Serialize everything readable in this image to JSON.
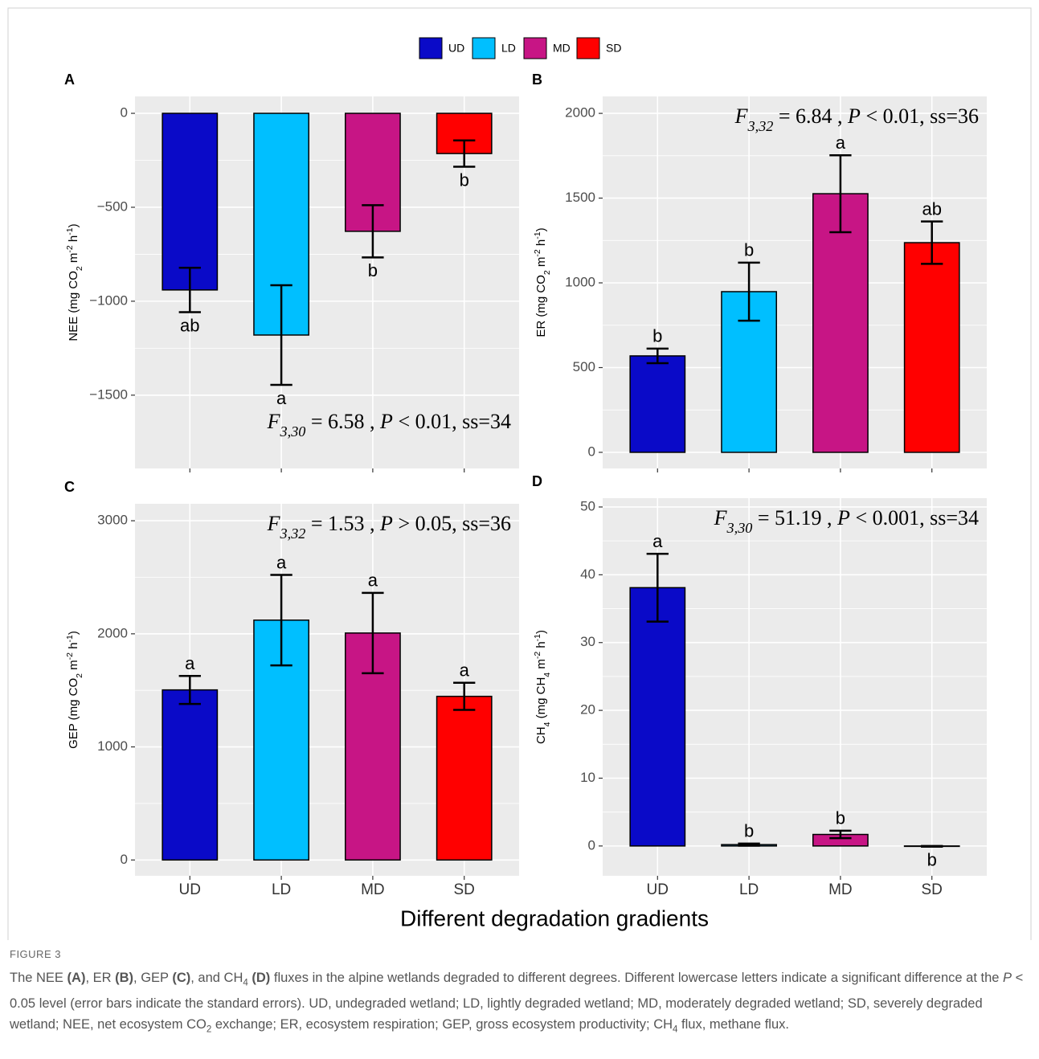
{
  "legend": {
    "labels": [
      "UD",
      "LD",
      "MD",
      "SD"
    ],
    "colors": [
      "#0a0ac8",
      "#00bfff",
      "#c71585",
      "#ff0000"
    ]
  },
  "xlabel": "Different degradation gradients",
  "chart_data": [
    {
      "type": "bar",
      "panel": "A",
      "ylabel": [
        "NEE (mg CO",
        {
          "text": "2",
          "style": "sub"
        },
        " m",
        {
          "text": "-2",
          "style": "sup"
        },
        " h",
        {
          "text": "-1",
          "style": "sup"
        },
        ")"
      ],
      "stat": [
        {
          "text": "F",
          "style": "i"
        },
        {
          "text": "3,30",
          "style": "isub"
        },
        " = 6.58 , ",
        {
          "text": "P",
          "style": "i"
        },
        " < 0.01, ss=34"
      ],
      "stat_corner": "bottom-right",
      "categories": [
        null,
        null,
        null,
        null
      ],
      "values": [
        -940,
        -1180,
        -628,
        -214
      ],
      "errors": [
        118,
        265,
        139,
        70
      ],
      "letters": [
        "ab",
        "a",
        "b",
        "b"
      ],
      "colors": [
        "#0a0ac8",
        "#00bfff",
        "#c71585",
        "#ff0000"
      ],
      "ylim": [
        -1890,
        90
      ],
      "yticks": [
        {
          "value": -1500,
          "label": "−1500"
        },
        {
          "value": -1000,
          "label": "−1000"
        },
        {
          "value": -500,
          "label": "−500"
        },
        0
      ],
      "grid": true
    },
    {
      "type": "bar",
      "panel": "B",
      "ylabel": [
        "ER (mg CO",
        {
          "text": "2",
          "style": "sub"
        },
        " m",
        {
          "text": "-2",
          "style": "sup"
        },
        " h",
        {
          "text": "-1",
          "style": "sup"
        },
        ")"
      ],
      "stat": [
        {
          "text": "F",
          "style": "i"
        },
        {
          "text": "3,32",
          "style": "isub"
        },
        " = 6.84 , ",
        {
          "text": "P",
          "style": "i"
        },
        " < 0.01, ss=36"
      ],
      "stat_corner": "top-right",
      "categories": [
        null,
        null,
        null,
        null
      ],
      "values": [
        569,
        948,
        1526,
        1237
      ],
      "errors": [
        43,
        171,
        227,
        125
      ],
      "letters": [
        "b",
        "b",
        "a",
        "ab"
      ],
      "colors": [
        "#0a0ac8",
        "#00bfff",
        "#c71585",
        "#ff0000"
      ],
      "ylim": [
        -95,
        2100
      ],
      "yticks": [
        0,
        500,
        1000,
        1500,
        2000
      ],
      "grid": true
    },
    {
      "type": "bar",
      "panel": "C",
      "ylabel": [
        "GEP (mg CO",
        {
          "text": "2",
          "style": "sub"
        },
        " m",
        {
          "text": "-2",
          "style": "sup"
        },
        " h",
        {
          "text": "-1",
          "style": "sup"
        },
        ")"
      ],
      "stat": [
        {
          "text": "F",
          "style": "i"
        },
        {
          "text": "3,32",
          "style": "isub"
        },
        " = 1.53 , ",
        {
          "text": "P",
          "style": "i"
        },
        " > 0.05, ss=36"
      ],
      "stat_corner": "top-right",
      "categories": [
        "UD",
        "LD",
        "MD",
        "SD"
      ],
      "values": [
        1504,
        2121,
        2007,
        1447
      ],
      "errors": [
        124,
        400,
        355,
        120
      ],
      "letters": [
        "a",
        "a",
        "a",
        "a"
      ],
      "colors": [
        "#0a0ac8",
        "#00bfff",
        "#c71585",
        "#ff0000"
      ],
      "ylim": [
        -140,
        3150
      ],
      "yticks": [
        0,
        1000,
        2000,
        3000
      ],
      "grid": true
    },
    {
      "type": "bar",
      "panel": "D",
      "ylabel": [
        "CH",
        {
          "text": "4",
          "style": "sub"
        },
        " (mg CH",
        {
          "text": "4",
          "style": "sub"
        },
        " m",
        {
          "text": "-2",
          "style": "sup"
        },
        " h",
        {
          "text": "-1",
          "style": "sup"
        },
        ")"
      ],
      "stat": [
        {
          "text": "F",
          "style": "i"
        },
        {
          "text": "3,30",
          "style": "isub"
        },
        " = 51.19 , ",
        {
          "text": "P",
          "style": "i"
        },
        " < 0.001, ss=34"
      ],
      "stat_corner": "top-right",
      "categories": [
        "UD",
        "LD",
        "MD",
        "SD"
      ],
      "values": [
        38.1,
        0.2,
        1.7,
        -0.05
      ],
      "errors": [
        5.0,
        0.15,
        0.55,
        0.05
      ],
      "letters": [
        "a",
        "b",
        "b",
        "b"
      ],
      "colors": [
        "#0a0ac8",
        "#00bfff",
        "#c71585",
        "#ff0000"
      ],
      "ylim": [
        -4.4,
        51.3
      ],
      "yticks": [
        0,
        10,
        20,
        30,
        40,
        50
      ],
      "grid": true
    }
  ],
  "caption": {
    "label": "FIGURE 3",
    "parts": [
      "The NEE ",
      {
        "text": "(A)",
        "style": "b"
      },
      ", ER ",
      {
        "text": "(B)",
        "style": "b"
      },
      ", GEP ",
      {
        "text": "(C)",
        "style": "b"
      },
      ", and CH",
      {
        "text": "4",
        "style": "sub"
      },
      " ",
      {
        "text": "(D)",
        "style": "b"
      },
      " fluxes in the alpine wetlands degraded to different degrees. Different lowercase letters indicate a significant difference at the ",
      {
        "text": "P",
        "style": "i"
      },
      " < 0.05 level (error bars indicate the standard errors). UD, undegraded wetland; LD, lightly degraded wetland; MD, moderately degraded wetland; SD, severely degraded wetland; NEE, net ecosystem CO",
      {
        "text": "2",
        "style": "sub"
      },
      " exchange; ER, ecosystem respiration; GEP, gross ecosystem productivity; CH",
      {
        "text": "4",
        "style": "sub"
      },
      " flux, methane flux."
    ]
  }
}
